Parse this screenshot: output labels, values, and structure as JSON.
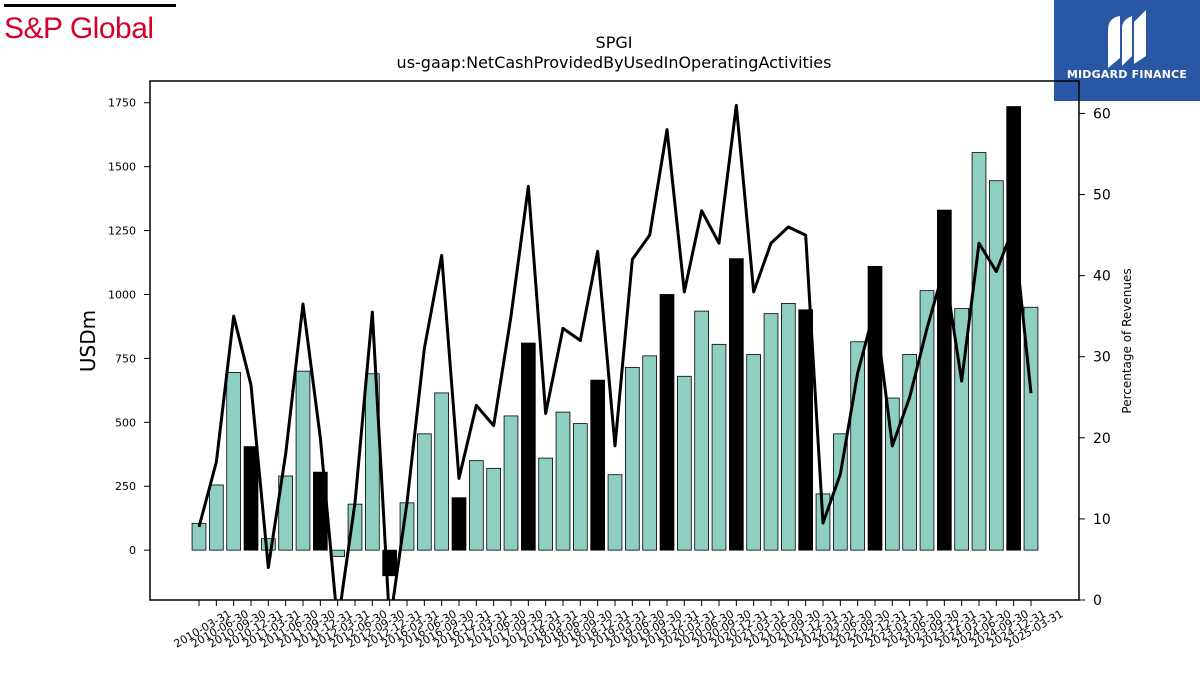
{
  "brand": {
    "left_logo": "S&P Global",
    "right_logo_name": "MIDGARD FINANCE",
    "right_logo_bg": "#2957a4",
    "left_logo_color": "#d6002a"
  },
  "chart_data": {
    "type": "bar",
    "title": "SPGI",
    "subtitle": "us-gaap:NetCashProvidedByUsedInOperatingActivities",
    "ylabel": "USDm",
    "y2label": "Percentage of Revenues",
    "ylim": [
      -195,
      1835
    ],
    "y2lim": [
      0,
      64
    ],
    "yticks": [
      0,
      250,
      500,
      750,
      1000,
      1250,
      1500,
      1750
    ],
    "y2ticks": [
      0,
      10,
      20,
      30,
      40,
      50,
      60
    ],
    "bar_color": "#8ecfc1",
    "q4_bar_color": "#000000",
    "line_color": "#000000",
    "grid": false,
    "categories": [
      "2010-03-31",
      "2010-06-30",
      "2010-09-30",
      "2010-12-31",
      "2011-03-31",
      "2011-06-30",
      "2011-09-30",
      "2011-12-31",
      "2012-03-31",
      "2012-06-30",
      "2012-09-30",
      "2012-12-31",
      "2016-03-31",
      "2016-06-30",
      "2016-09-30",
      "2016-12-31",
      "2017-03-31",
      "2017-06-30",
      "2017-09-30",
      "2017-12-31",
      "2018-03-31",
      "2018-06-30",
      "2018-09-30",
      "2018-12-31",
      "2019-03-31",
      "2019-06-30",
      "2019-09-30",
      "2019-12-31",
      "2020-03-31",
      "2020-06-30",
      "2020-09-30",
      "2020-12-31",
      "2021-03-31",
      "2021-06-30",
      "2021-09-30",
      "2021-12-31",
      "2022-03-31",
      "2022-06-30",
      "2022-09-30",
      "2022-12-31",
      "2023-03-31",
      "2023-06-30",
      "2023-09-30",
      "2023-12-31",
      "2024-03-31",
      "2024-06-30",
      "2024-09-30",
      "2024-12-31",
      "2025-03-31"
    ],
    "series": [
      {
        "values": [
          105,
          255,
          695,
          405,
          45,
          290,
          700,
          305,
          -25,
          180,
          690,
          -100,
          185,
          455,
          615,
          205,
          350,
          320,
          525,
          810,
          360,
          540,
          495,
          665,
          295,
          715,
          760,
          1000,
          680,
          935,
          805,
          1140,
          765,
          925,
          965,
          940,
          220,
          455,
          815,
          1110,
          595,
          765,
          1015,
          1330,
          945,
          1555,
          1445,
          1735,
          950
        ]
      },
      {
        "values": [
          9,
          17,
          35,
          26.5,
          4,
          18,
          36.5,
          20,
          -3,
          12,
          35.5,
          -3,
          12,
          31,
          42.5,
          15,
          24,
          21.5,
          35,
          51,
          23,
          33.5,
          32,
          43,
          19,
          42,
          45,
          58,
          38,
          48,
          44,
          61,
          38,
          44,
          46,
          45,
          9.5,
          15.5,
          28,
          36,
          19,
          25,
          33.5,
          41,
          27,
          44,
          40.5,
          46,
          25.5
        ]
      }
    ]
  }
}
